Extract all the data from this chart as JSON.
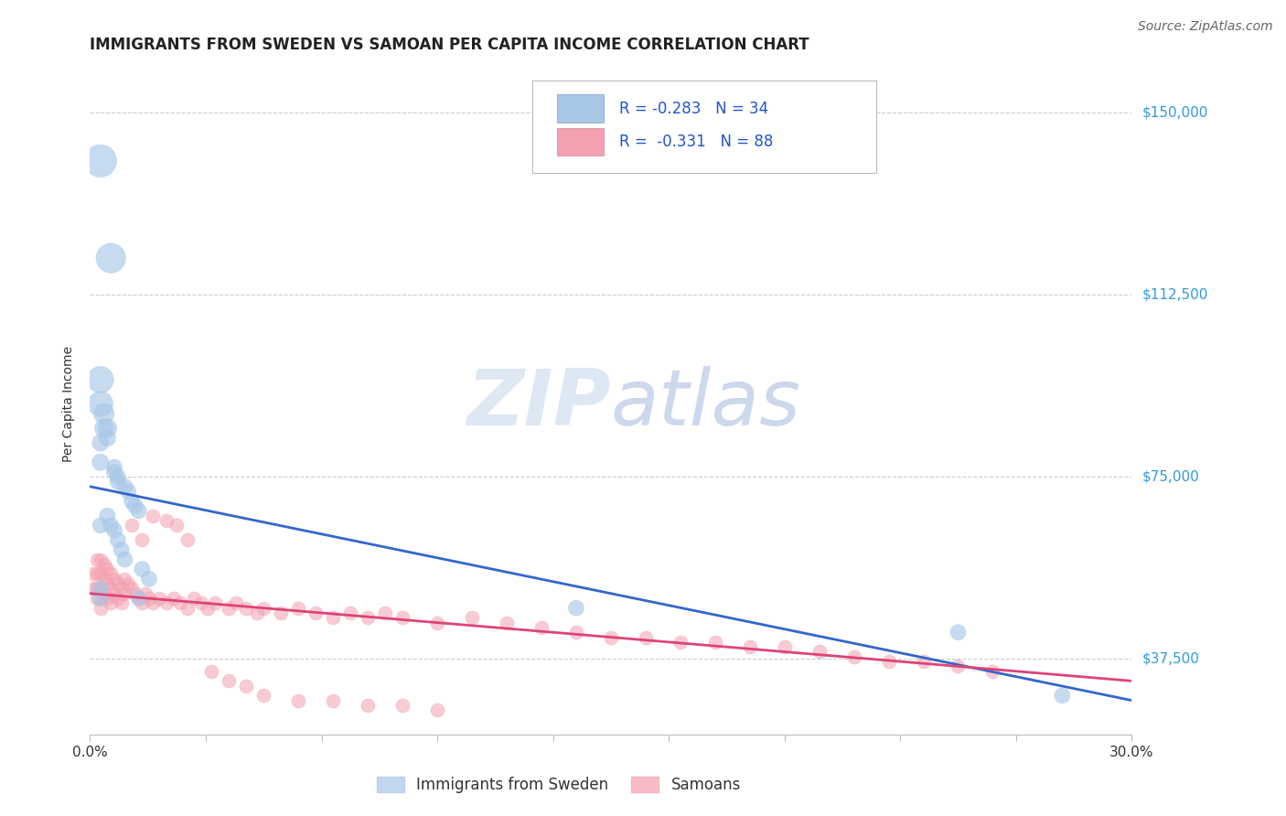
{
  "title": "IMMIGRANTS FROM SWEDEN VS SAMOAN PER CAPITA INCOME CORRELATION CHART",
  "source": "Source: ZipAtlas.com",
  "ylabel": "Per Capita Income",
  "xlim": [
    0.0,
    0.3
  ],
  "ylim": [
    22000,
    158000
  ],
  "ytick_values": [
    37500,
    75000,
    112500,
    150000
  ],
  "ytick_labels_right": [
    "$37,500",
    "$75,000",
    "$112,500",
    "$150,000"
  ],
  "background_color": "#ffffff",
  "grid_color": "#cccccc",
  "blue_R": "-0.283",
  "blue_N": "34",
  "pink_R": "-0.331",
  "pink_N": "88",
  "blue_color": "#a8c8e8",
  "pink_color": "#f4a0b0",
  "blue_line_color": "#3366cc",
  "pink_line_color": "#dd4477",
  "blue_scatter_x": [
    0.003,
    0.006,
    0.003,
    0.003,
    0.004,
    0.004,
    0.005,
    0.005,
    0.003,
    0.003,
    0.007,
    0.007,
    0.008,
    0.008,
    0.01,
    0.011,
    0.012,
    0.013,
    0.014,
    0.005,
    0.006,
    0.007,
    0.008,
    0.009,
    0.01,
    0.015,
    0.017,
    0.003,
    0.003,
    0.14,
    0.25,
    0.28,
    0.003,
    0.014
  ],
  "blue_scatter_y": [
    140000,
    120000,
    95000,
    90000,
    88000,
    85000,
    85000,
    83000,
    82000,
    78000,
    77000,
    76000,
    75000,
    74000,
    73000,
    72000,
    70000,
    69000,
    68000,
    67000,
    65000,
    64000,
    62000,
    60000,
    58000,
    56000,
    54000,
    52000,
    50000,
    48000,
    43000,
    30000,
    65000,
    50000
  ],
  "blue_scatter_size": [
    300,
    250,
    200,
    180,
    120,
    100,
    100,
    80,
    80,
    80,
    70,
    70,
    70,
    70,
    70,
    70,
    70,
    70,
    70,
    70,
    70,
    70,
    70,
    70,
    70,
    70,
    70,
    70,
    70,
    70,
    70,
    70,
    70,
    70
  ],
  "pink_scatter_x": [
    0.001,
    0.001,
    0.002,
    0.002,
    0.002,
    0.002,
    0.003,
    0.003,
    0.003,
    0.003,
    0.003,
    0.004,
    0.004,
    0.004,
    0.005,
    0.005,
    0.005,
    0.006,
    0.006,
    0.006,
    0.007,
    0.007,
    0.008,
    0.008,
    0.009,
    0.009,
    0.01,
    0.01,
    0.011,
    0.012,
    0.013,
    0.014,
    0.015,
    0.016,
    0.017,
    0.018,
    0.02,
    0.022,
    0.024,
    0.026,
    0.028,
    0.03,
    0.032,
    0.034,
    0.036,
    0.04,
    0.042,
    0.045,
    0.048,
    0.05,
    0.055,
    0.06,
    0.065,
    0.07,
    0.075,
    0.08,
    0.085,
    0.09,
    0.1,
    0.11,
    0.12,
    0.13,
    0.14,
    0.15,
    0.16,
    0.17,
    0.18,
    0.19,
    0.2,
    0.21,
    0.22,
    0.23,
    0.24,
    0.25,
    0.26,
    0.012,
    0.015,
    0.018,
    0.022,
    0.025,
    0.028,
    0.035,
    0.04,
    0.045,
    0.05,
    0.06,
    0.07,
    0.08,
    0.09,
    0.1
  ],
  "pink_scatter_y": [
    55000,
    52000,
    58000,
    55000,
    52000,
    50000,
    58000,
    55000,
    52000,
    50000,
    48000,
    57000,
    54000,
    51000,
    56000,
    53000,
    50000,
    55000,
    52000,
    49000,
    54000,
    51000,
    53000,
    50000,
    52000,
    49000,
    54000,
    51000,
    53000,
    52000,
    51000,
    50000,
    49000,
    51000,
    50000,
    49000,
    50000,
    49000,
    50000,
    49000,
    48000,
    50000,
    49000,
    48000,
    49000,
    48000,
    49000,
    48000,
    47000,
    48000,
    47000,
    48000,
    47000,
    46000,
    47000,
    46000,
    47000,
    46000,
    45000,
    46000,
    45000,
    44000,
    43000,
    42000,
    42000,
    41000,
    41000,
    40000,
    40000,
    39000,
    38000,
    37000,
    37000,
    36000,
    35000,
    65000,
    62000,
    67000,
    66000,
    65000,
    62000,
    35000,
    33000,
    32000,
    30000,
    29000,
    29000,
    28000,
    28000,
    27000
  ],
  "blue_trend_x": [
    0.0,
    0.3
  ],
  "blue_trend_y": [
    73000,
    29000
  ],
  "pink_trend_x": [
    0.0,
    0.3
  ],
  "pink_trend_y": [
    51000,
    33000
  ],
  "watermark_zip": "ZIP",
  "watermark_atlas": "atlas",
  "watermark_color": "#dde8f4",
  "legend_blue_label": "Immigrants from Sweden",
  "legend_pink_label": "Samoans",
  "title_fontsize": 12,
  "axis_label_fontsize": 10,
  "tick_fontsize": 11,
  "source_fontsize": 10
}
